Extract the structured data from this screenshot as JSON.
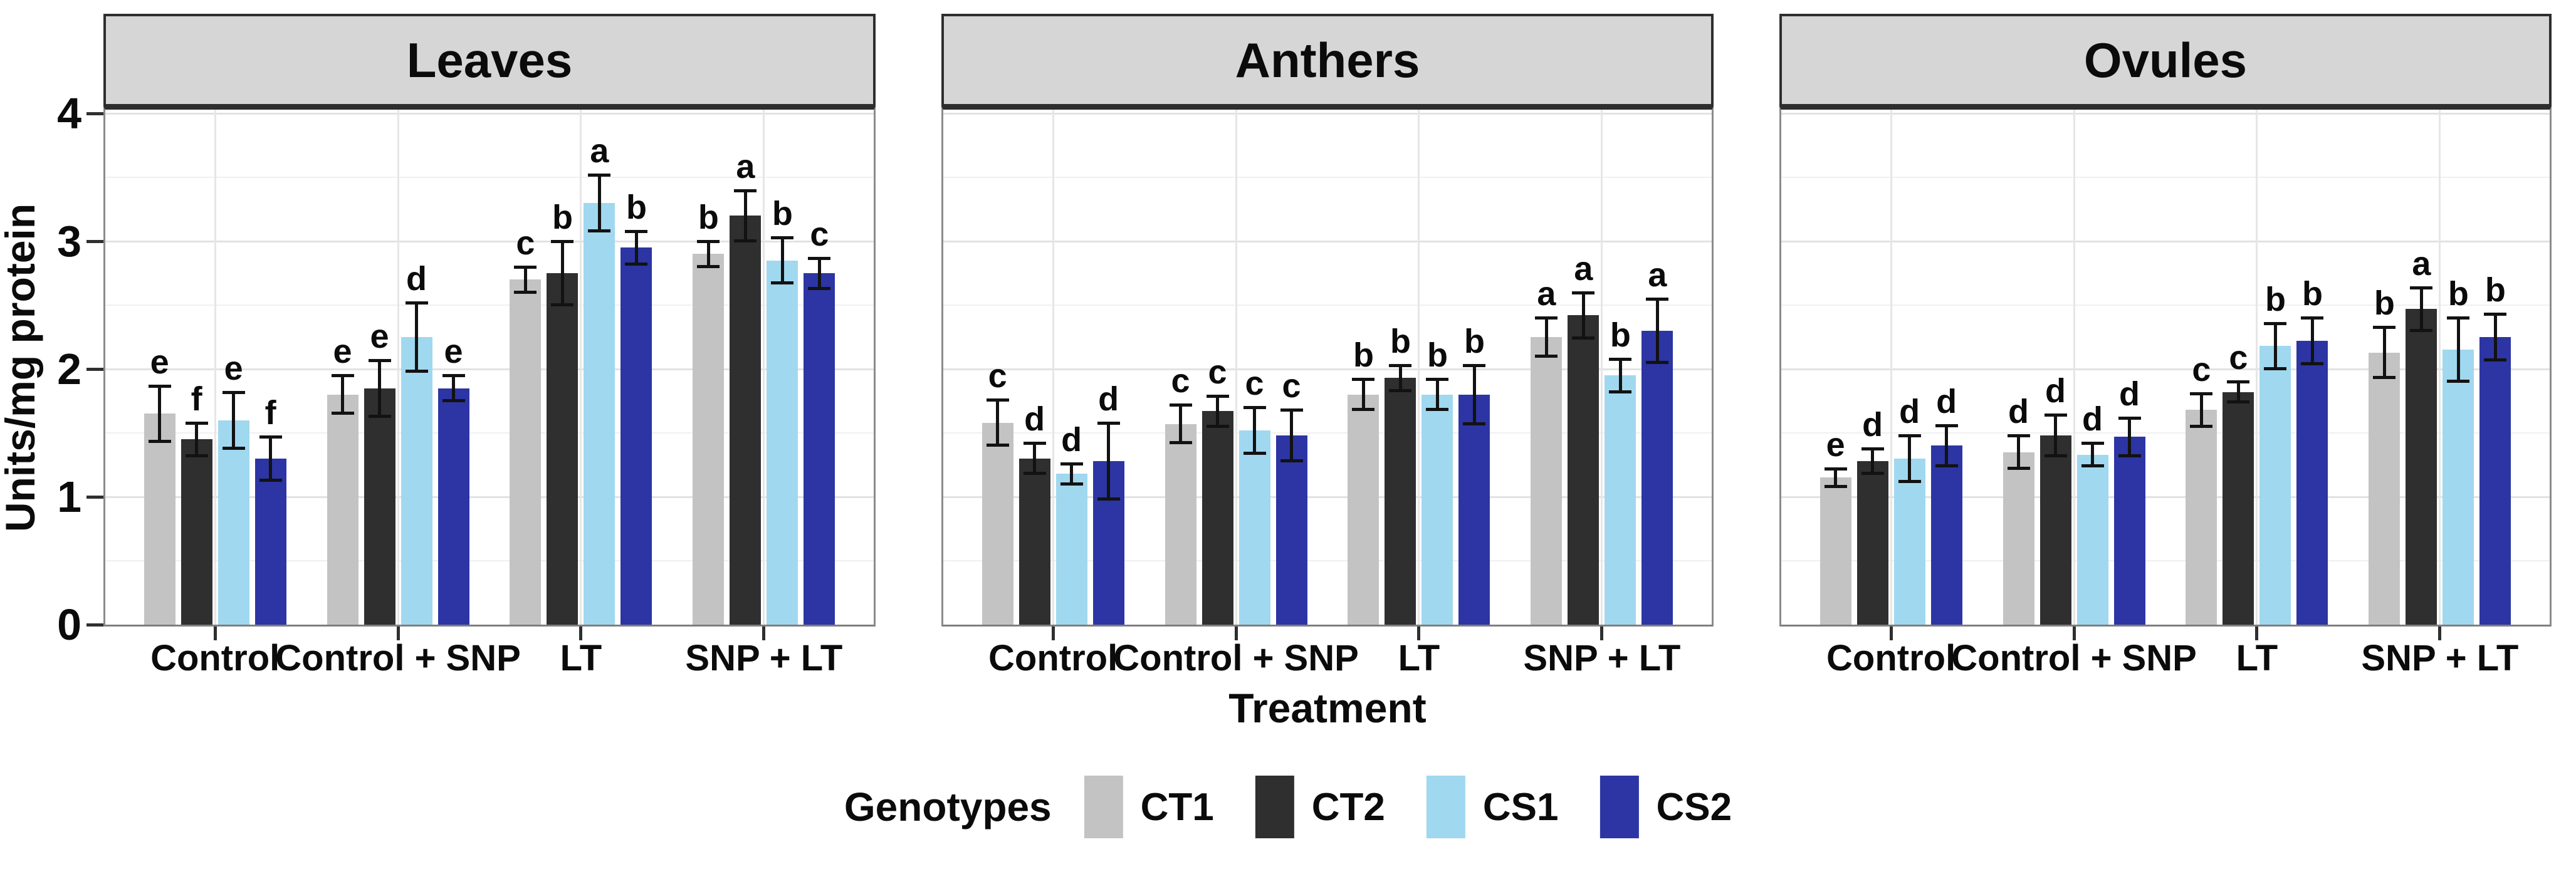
{
  "chart_data": {
    "type": "bar",
    "title": "",
    "ylabel": "Units/mg protein",
    "xlabel": "Treatment",
    "ylim": [
      0,
      4.03
    ],
    "yticks": [
      0,
      1,
      2,
      3,
      4
    ],
    "grid": true,
    "error_bars": true,
    "legend": {
      "title": "Genotypes",
      "position": "bottom"
    },
    "categories": [
      "Control",
      "Control + SNP",
      "LT",
      "SNP + LT"
    ],
    "genotypes": [
      {
        "name": "CT1",
        "color": "#c3c3c3"
      },
      {
        "name": "CT2",
        "color": "#2f2f2f"
      },
      {
        "name": "CS1",
        "color": "#a0d8ef"
      },
      {
        "name": "CS2",
        "color": "#2c35a3"
      }
    ],
    "facets": [
      {
        "title": "Leaves",
        "series": [
          {
            "name": "CT1",
            "values": [
              1.65,
              1.8,
              2.7,
              2.9
            ],
            "errors": [
              0.22,
              0.15,
              0.1,
              0.1
            ],
            "letters": [
              "e",
              "e",
              "c",
              "b"
            ]
          },
          {
            "name": "CT2",
            "values": [
              1.45,
              1.85,
              2.75,
              3.2
            ],
            "errors": [
              0.13,
              0.22,
              0.25,
              0.2
            ],
            "letters": [
              "f",
              "e",
              "b",
              "a"
            ]
          },
          {
            "name": "CS1",
            "values": [
              1.6,
              2.25,
              3.3,
              2.85
            ],
            "errors": [
              0.22,
              0.27,
              0.22,
              0.18
            ],
            "letters": [
              "e",
              "d",
              "a",
              "b"
            ]
          },
          {
            "name": "CS2",
            "values": [
              1.3,
              1.85,
              2.95,
              2.75
            ],
            "errors": [
              0.17,
              0.1,
              0.13,
              0.12
            ],
            "letters": [
              "f",
              "e",
              "b",
              "c"
            ]
          }
        ]
      },
      {
        "title": "Anthers",
        "series": [
          {
            "name": "CT1",
            "values": [
              1.58,
              1.57,
              1.8,
              2.25
            ],
            "errors": [
              0.18,
              0.15,
              0.12,
              0.15
            ],
            "letters": [
              "c",
              "c",
              "b",
              "a"
            ]
          },
          {
            "name": "CT2",
            "values": [
              1.3,
              1.67,
              1.93,
              2.42
            ],
            "errors": [
              0.12,
              0.12,
              0.1,
              0.18
            ],
            "letters": [
              "d",
              "c",
              "b",
              "a"
            ]
          },
          {
            "name": "CS1",
            "values": [
              1.18,
              1.52,
              1.8,
              1.95
            ],
            "errors": [
              0.08,
              0.18,
              0.12,
              0.13
            ],
            "letters": [
              "d",
              "c",
              "b",
              "b"
            ]
          },
          {
            "name": "CS2",
            "values": [
              1.28,
              1.48,
              1.8,
              2.3
            ],
            "errors": [
              0.3,
              0.2,
              0.23,
              0.25
            ],
            "letters": [
              "d",
              "c",
              "b",
              "a"
            ]
          }
        ]
      },
      {
        "title": "Ovules",
        "series": [
          {
            "name": "CT1",
            "values": [
              1.15,
              1.35,
              1.68,
              2.13
            ],
            "errors": [
              0.07,
              0.13,
              0.13,
              0.2
            ],
            "letters": [
              "e",
              "d",
              "c",
              "b"
            ]
          },
          {
            "name": "CT2",
            "values": [
              1.28,
              1.48,
              1.82,
              2.47
            ],
            "errors": [
              0.1,
              0.16,
              0.08,
              0.17
            ],
            "letters": [
              "d",
              "d",
              "c",
              "a"
            ]
          },
          {
            "name": "CS1",
            "values": [
              1.3,
              1.33,
              2.18,
              2.15
            ],
            "errors": [
              0.18,
              0.09,
              0.18,
              0.25
            ],
            "letters": [
              "d",
              "d",
              "b",
              "b"
            ]
          },
          {
            "name": "CS2",
            "values": [
              1.4,
              1.47,
              2.22,
              2.25
            ],
            "errors": [
              0.16,
              0.15,
              0.18,
              0.18
            ],
            "letters": [
              "d",
              "d",
              "b",
              "b"
            ]
          }
        ]
      }
    ]
  }
}
